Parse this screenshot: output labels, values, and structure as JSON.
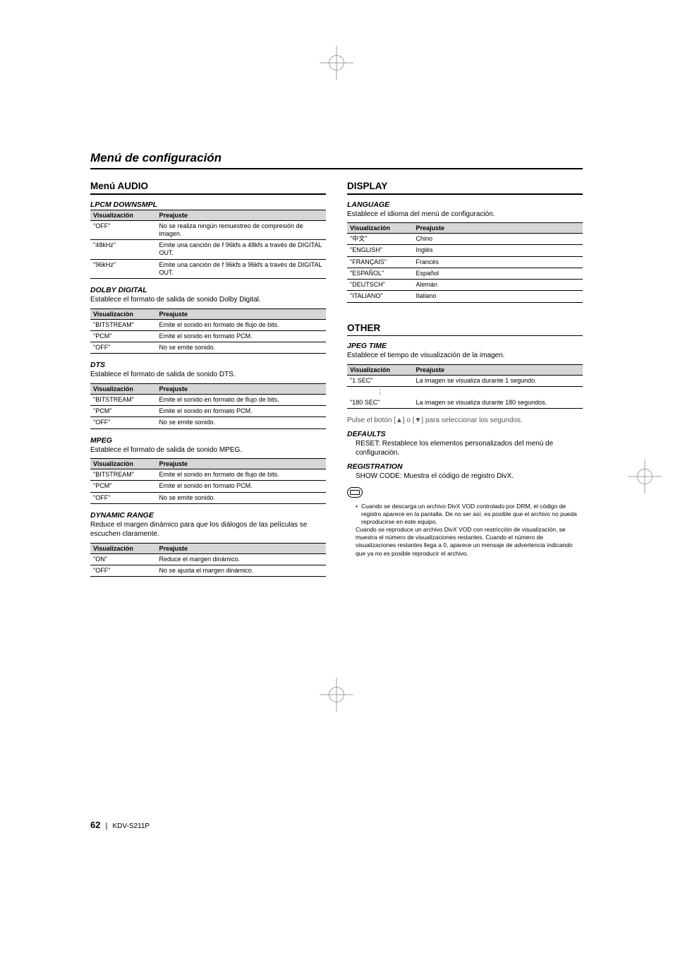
{
  "page": {
    "title": "Menú de configuración",
    "number": "62",
    "model": "KDV-S211P"
  },
  "tableHeaders": {
    "col0": "Visualización",
    "col1": "Preajuste"
  },
  "left": {
    "menuAudio": {
      "heading": "Menú AUDIO",
      "lpcm": {
        "heading": "LPCM DOWNSMPL",
        "rows": [
          {
            "v": "\"OFF\"",
            "p": "No se realiza ningún remuestreo de compresión de imagen."
          },
          {
            "v": "\"48kHz\"",
            "p": "Emite una canción de f 96kfs a 48kfs a través de DIGITAL OUT."
          },
          {
            "v": "\"96kHz\"",
            "p": "Emite una canción de f 96kfs a 96kfs a través de DIGITAL OUT."
          }
        ]
      },
      "dolby": {
        "heading": "DOLBY DIGITAL",
        "desc": "Establece el formato de salida de sonido Dolby Digital.",
        "rows": [
          {
            "v": "\"BITSTREAM\"",
            "p": "Emite el sonido en formato de flujo de bits."
          },
          {
            "v": "\"PCM\"",
            "p": "Emite el sonido en formato PCM."
          },
          {
            "v": "\"OFF\"",
            "p": "No se emite sonido."
          }
        ]
      },
      "dts": {
        "heading": "DTS",
        "desc": "Establece el formato de salida de sonido DTS.",
        "rows": [
          {
            "v": "\"BITSTREAM\"",
            "p": "Emite el sonido en formato de flujo de bits."
          },
          {
            "v": "\"PCM\"",
            "p": "Emite el sonido en formato PCM."
          },
          {
            "v": "\"OFF\"",
            "p": "No se emite sonido."
          }
        ]
      },
      "mpeg": {
        "heading": "MPEG",
        "desc": "Establece el formato de salida de sonido MPEG.",
        "rows": [
          {
            "v": "\"BITSTREAM\"",
            "p": "Emite el sonido en formato de flujo de bits."
          },
          {
            "v": "\"PCM\"",
            "p": "Emite el sonido en formato PCM."
          },
          {
            "v": "\"OFF\"",
            "p": "No se emite sonido."
          }
        ]
      },
      "dynamic": {
        "heading": "DYNAMIC RANGE",
        "desc": "Reduce el margen dinámico para que los diálogos de las películas se escuchen claramente.",
        "rows": [
          {
            "v": "\"ON\"",
            "p": "Reduce el margen dinámico."
          },
          {
            "v": "\"OFF\"",
            "p": "No se ajusta el margen dinámico."
          }
        ]
      }
    }
  },
  "right": {
    "display": {
      "heading": "DISPLAY",
      "language": {
        "heading": "LANGUAGE",
        "desc": "Establece el idioma del menú de configuración.",
        "rows": [
          {
            "v": "\"中文\"",
            "p": "Chino"
          },
          {
            "v": "\"ENGLISH\"",
            "p": "Inglés"
          },
          {
            "v": "\"FRANÇAIS\"",
            "p": "Francés"
          },
          {
            "v": "\"ESPAÑOL\"",
            "p": "Español"
          },
          {
            "v": "\"DEUTSCH\"",
            "p": "Alemán"
          },
          {
            "v": "\"ITALIANO\"",
            "p": "Italiano"
          }
        ]
      }
    },
    "other": {
      "heading": "OTHER",
      "jpeg": {
        "heading": "JPEG TIME",
        "desc": "Establece el tiempo de visualización de la imagen.",
        "row0": {
          "v": "\"1 SEC\"",
          "p": "La imagen se visualiza durante 1 segundo."
        },
        "row1": {
          "v": "\"180 SEC\"",
          "p": "La imagen se visualiza durante 180 segundos."
        },
        "note": "Pulse el botón [▲] o [▼] para seleccionar los segundos."
      },
      "defaults": {
        "heading": "DEFAULTS",
        "desc": "RESET: Restablece los elementos personalizados del menú de configuración."
      },
      "registration": {
        "heading": "REGISTRATION",
        "desc": "SHOW CODE: Muestra el código de registro DivX.",
        "fine1": "Cuando se descarga un archivo DivX VOD controlado por DRM, el código de registro aparece en la pantalla. De no ser así, es posible que el archivo no pueda reproducirse en este equipo.",
        "fine2": "Cuando se reproduce un archivo DivX VOD con restricción de visualización, se muestra el número de visualizaciones restantes. Cuando el número de visualizaciones restantes llega a 0, aparece un mensaje de advertencia indicando que ya no es posible reproducir el archivo."
      }
    }
  }
}
